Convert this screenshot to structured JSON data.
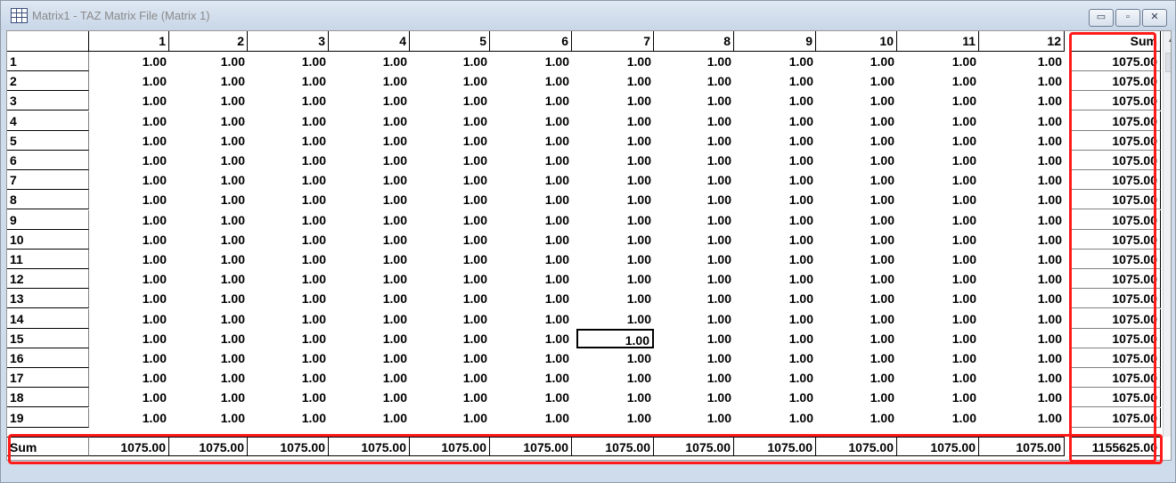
{
  "window": {
    "title": "Matrix1 - TAZ Matrix File (Matrix 1)",
    "controls": {
      "minimize": "▭",
      "restore": "▫",
      "close": "✕"
    }
  },
  "matrix": {
    "columns": [
      "1",
      "2",
      "3",
      "4",
      "5",
      "6",
      "7",
      "8",
      "9",
      "10",
      "11",
      "12",
      "Sum"
    ],
    "rows": [
      "1",
      "2",
      "3",
      "4",
      "5",
      "6",
      "7",
      "8",
      "9",
      "10",
      "11",
      "12",
      "13",
      "14",
      "15",
      "16",
      "17",
      "18",
      "19"
    ],
    "cell_value": "1.00",
    "row_sum": "1075.00",
    "sum_row_label": "Sum",
    "column_sums": [
      "1075.00",
      "1075.00",
      "1075.00",
      "1075.00",
      "1075.00",
      "1075.00",
      "1075.00",
      "1075.00",
      "1075.00",
      "1075.00",
      "1075.00",
      "1075.00"
    ],
    "grand_total": "1155625.00",
    "selected_cell": {
      "row": "15",
      "column": "7"
    }
  },
  "colors": {
    "highlight": "#ff1a1a",
    "window_frame": "#cfdcec"
  }
}
